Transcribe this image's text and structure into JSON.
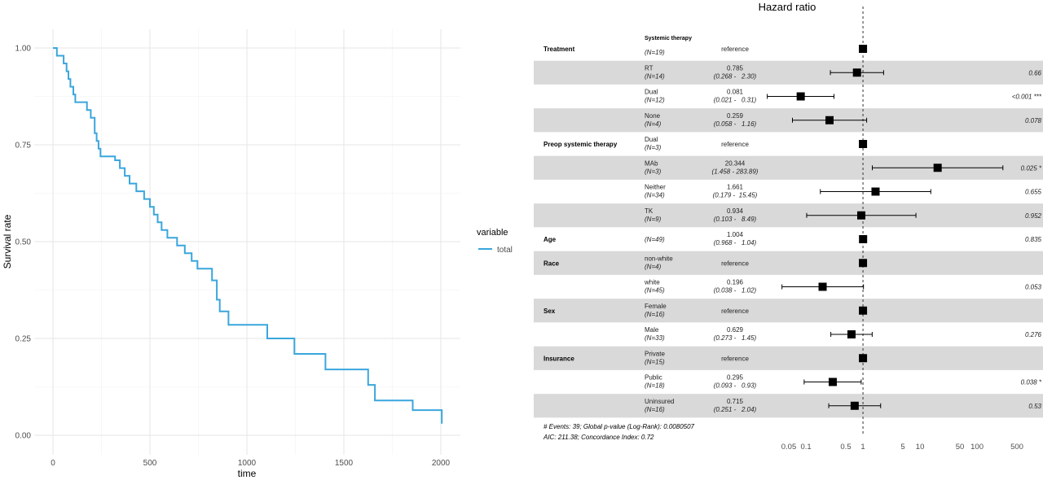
{
  "chart_data": [
    {
      "type": "line",
      "subtype": "step",
      "xlabel": "time",
      "ylabel": "Survival rate",
      "xlim": [
        0,
        2100
      ],
      "ylim": [
        0,
        1.05
      ],
      "x_ticks": [
        "0",
        "500",
        "1000",
        "1500",
        "2000"
      ],
      "y_ticks": [
        "0.00",
        "0.25",
        "0.50",
        "0.75",
        "1.00"
      ],
      "grid": true,
      "legend": {
        "title": "variable",
        "position": "right",
        "entries": [
          "total"
        ]
      },
      "colors": {
        "line": "#3aa6dd"
      },
      "series": [
        {
          "name": "total",
          "points": [
            [
              0,
              1.0
            ],
            [
              20,
              0.98
            ],
            [
              55,
              0.96
            ],
            [
              70,
              0.94
            ],
            [
              80,
              0.92
            ],
            [
              90,
              0.9
            ],
            [
              105,
              0.88
            ],
            [
              115,
              0.86
            ],
            [
              175,
              0.84
            ],
            [
              195,
              0.82
            ],
            [
              215,
              0.78
            ],
            [
              225,
              0.76
            ],
            [
              235,
              0.74
            ],
            [
              245,
              0.72
            ],
            [
              320,
              0.71
            ],
            [
              345,
              0.69
            ],
            [
              370,
              0.67
            ],
            [
              395,
              0.65
            ],
            [
              430,
              0.63
            ],
            [
              470,
              0.61
            ],
            [
              500,
              0.59
            ],
            [
              520,
              0.57
            ],
            [
              540,
              0.55
            ],
            [
              560,
              0.53
            ],
            [
              590,
              0.51
            ],
            [
              640,
              0.49
            ],
            [
              680,
              0.47
            ],
            [
              715,
              0.45
            ],
            [
              745,
              0.43
            ],
            [
              820,
              0.4
            ],
            [
              845,
              0.35
            ],
            [
              860,
              0.32
            ],
            [
              905,
              0.285
            ],
            [
              1105,
              0.25
            ],
            [
              1245,
              0.21
            ],
            [
              1405,
              0.17
            ],
            [
              1625,
              0.13
            ],
            [
              1660,
              0.09
            ],
            [
              1855,
              0.065
            ],
            [
              2005,
              0.03
            ]
          ]
        }
      ]
    },
    {
      "type": "table",
      "subtype": "forest",
      "title": "Hazard ratio",
      "x_scale": "log",
      "xlim": [
        0.03,
        900
      ],
      "x_ticks": [
        0.05,
        0.1,
        0.5,
        1,
        5,
        10,
        50,
        100,
        500
      ],
      "x_tick_labels": [
        "0.05",
        "0.1",
        "0.5",
        "1",
        "5",
        "10",
        "50",
        "100",
        "500"
      ],
      "reference_line": 1,
      "rows": [
        {
          "variable": "Treatment",
          "level": "Systemic therapy",
          "n": "(N=19)",
          "hr": "reference",
          "ci": "",
          "p": "",
          "est": 1,
          "lo": null,
          "hi": null,
          "shaded": false,
          "level_bold": true
        },
        {
          "variable": "",
          "level": "RT",
          "n": "(N=14)",
          "hr": "0.785",
          "ci": "(0.268 -   2.30)",
          "p": "0.66",
          "est": 0.785,
          "lo": 0.268,
          "hi": 2.3,
          "shaded": true
        },
        {
          "variable": "",
          "level": "Dual",
          "n": "(N=12)",
          "hr": "0.081",
          "ci": "(0.021 -   0.31)",
          "p": "<0.001 ***",
          "est": 0.081,
          "lo": 0.021,
          "hi": 0.31,
          "shaded": false
        },
        {
          "variable": "",
          "level": "None",
          "n": "(N=4)",
          "hr": "0.259",
          "ci": "(0.058 -   1.16)",
          "p": "0.078",
          "est": 0.259,
          "lo": 0.058,
          "hi": 1.16,
          "shaded": true
        },
        {
          "variable": "Preop systemic therapy",
          "level": "Dual",
          "n": "(N=3)",
          "hr": "reference",
          "ci": "",
          "p": "",
          "est": 1,
          "lo": null,
          "hi": null,
          "shaded": false
        },
        {
          "variable": "",
          "level": "MAb",
          "n": "(N=3)",
          "hr": "20.344",
          "ci": "(1.458 - 283.89)",
          "p": "0.025 *",
          "est": 20.344,
          "lo": 1.458,
          "hi": 283.89,
          "shaded": true
        },
        {
          "variable": "",
          "level": "Neither",
          "n": "(N=34)",
          "hr": "1.661",
          "ci": "(0.179 -  15.45)",
          "p": "0.655",
          "est": 1.661,
          "lo": 0.179,
          "hi": 15.45,
          "shaded": false
        },
        {
          "variable": "",
          "level": "TK",
          "n": "(N=9)",
          "hr": "0.934",
          "ci": "(0.103 -   8.49)",
          "p": "0.952",
          "est": 0.934,
          "lo": 0.103,
          "hi": 8.49,
          "shaded": true
        },
        {
          "variable": "Age",
          "level": "",
          "n": "(N=49)",
          "hr": "1.004",
          "ci": "(0.968 -   1.04)",
          "p": "0.835",
          "est": 1.004,
          "lo": 0.968,
          "hi": 1.04,
          "shaded": false
        },
        {
          "variable": "Race",
          "level": "non-white",
          "n": "(N=4)",
          "hr": "reference",
          "ci": "",
          "p": "",
          "est": 1,
          "lo": null,
          "hi": null,
          "shaded": true
        },
        {
          "variable": "",
          "level": "white",
          "n": "(N=45)",
          "hr": "0.196",
          "ci": "(0.038 -   1.02)",
          "p": "0.053",
          "est": 0.196,
          "lo": 0.038,
          "hi": 1.02,
          "shaded": false
        },
        {
          "variable": "Sex",
          "level": "Female",
          "n": "(N=16)",
          "hr": "reference",
          "ci": "",
          "p": "",
          "est": 1,
          "lo": null,
          "hi": null,
          "shaded": true
        },
        {
          "variable": "",
          "level": "Male",
          "n": "(N=33)",
          "hr": "0.629",
          "ci": "(0.273 -   1.45)",
          "p": "0.276",
          "est": 0.629,
          "lo": 0.273,
          "hi": 1.45,
          "shaded": false
        },
        {
          "variable": "Insurance",
          "level": "Private",
          "n": "(N=15)",
          "hr": "reference",
          "ci": "",
          "p": "",
          "est": 1,
          "lo": null,
          "hi": null,
          "shaded": true
        },
        {
          "variable": "",
          "level": "Public",
          "n": "(N=18)",
          "hr": "0.295",
          "ci": "(0.093 -   0.93)",
          "p": "0.038 *",
          "est": 0.295,
          "lo": 0.093,
          "hi": 0.93,
          "shaded": false
        },
        {
          "variable": "",
          "level": "Uninsured",
          "n": "(N=16)",
          "hr": "0.715",
          "ci": "(0.251 -   2.04)",
          "p": "0.53",
          "est": 0.715,
          "lo": 0.251,
          "hi": 2.04,
          "shaded": true
        }
      ],
      "footer": [
        "# Events: 39; Global p-value (Log-Rank): 0.0080507",
        "AIC: 211.38; Concordance Index: 0.72"
      ],
      "colors": {
        "shade": "#d9d9d9",
        "marker": "#000000"
      }
    }
  ]
}
